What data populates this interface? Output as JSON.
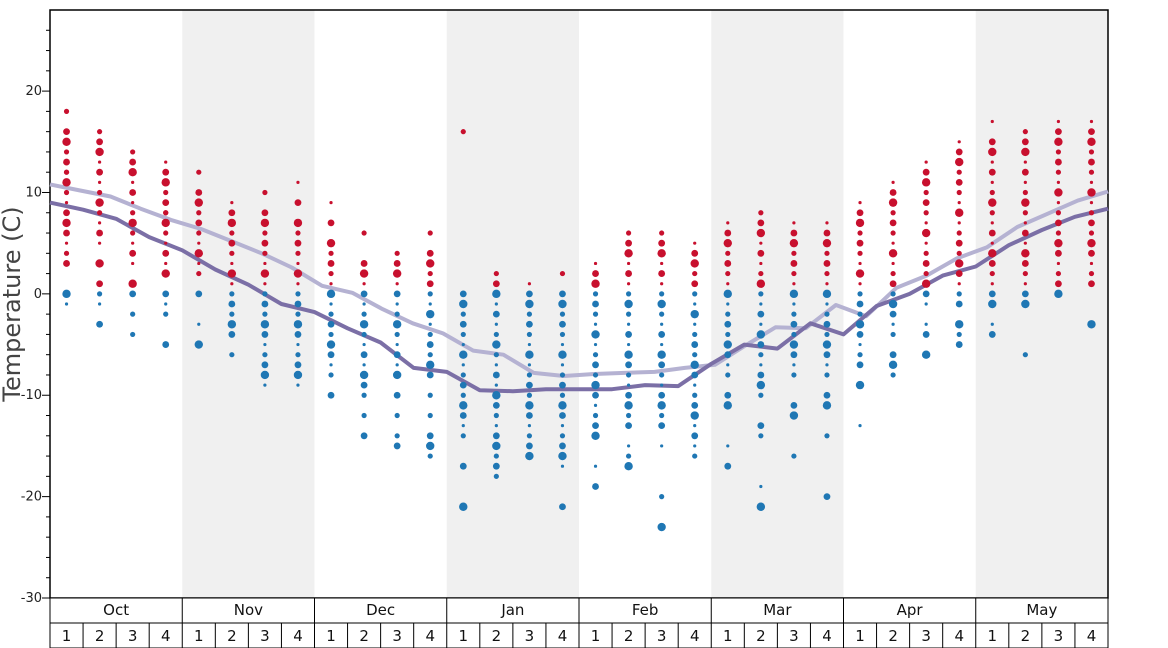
{
  "chart_data": {
    "type": "scatter",
    "title": "",
    "ylabel": "Temperature (C)",
    "ylim": [
      -30,
      28
    ],
    "yticks": [
      20,
      10,
      0,
      -10,
      -20,
      -30
    ],
    "months": [
      "Oct",
      "Nov",
      "Dec",
      "Jan",
      "Feb",
      "Mar",
      "Apr",
      "May"
    ],
    "weeks_per_month": [
      "1",
      "2",
      "3",
      "4"
    ],
    "shaded_months": [
      "Nov",
      "Jan",
      "Mar",
      "May"
    ],
    "colors": {
      "warm_points": "#c8102e",
      "cold_points": "#1f77b4",
      "max_line": "#b5b2d2",
      "min_line": "#7b6fa6",
      "shading": "#f0f0f0"
    },
    "series": [
      {
        "name": "",
        "type": "line",
        "color": "#b5b2d2",
        "values": [
          10.8,
          10.2,
          9.6,
          8.4,
          7.3,
          6.4,
          5.2,
          4.0,
          2.6,
          0.8,
          0.1,
          -1.5,
          -2.9,
          -3.9,
          -5.6,
          -6.0,
          -7.8,
          -8.1,
          -7.9,
          -7.8,
          -7.7,
          -7.3,
          -7.0,
          -5.1,
          -3.3,
          -3.4,
          -1.1,
          -2.2,
          0.6,
          1.8,
          3.5,
          4.6,
          6.6,
          7.9,
          9.2,
          10.1
        ]
      },
      {
        "name": "",
        "type": "line",
        "color": "#7b6fa6",
        "values": [
          9.0,
          8.3,
          7.4,
          5.6,
          4.3,
          2.4,
          0.9,
          -1.0,
          -1.8,
          -3.4,
          -4.8,
          -7.3,
          -7.7,
          -9.5,
          -9.6,
          -9.4,
          -9.4,
          -9.4,
          -9.0,
          -9.1,
          -6.9,
          -5.0,
          -5.4,
          -2.9,
          -4.0,
          -1.2,
          0.0,
          1.8,
          2.7,
          4.8,
          6.3,
          7.6,
          8.4
        ]
      },
      {
        "name": "",
        "type": "scatter",
        "values": [
          [
            18,
            16,
            15,
            14,
            13,
            12,
            12,
            11,
            10,
            9,
            8,
            8,
            7,
            6,
            5,
            4,
            3,
            0,
            -1
          ],
          [
            16,
            15,
            14,
            13,
            12,
            11,
            10,
            9,
            8,
            7,
            6,
            5,
            3,
            1,
            0,
            -1,
            -3
          ],
          [
            14,
            13,
            12,
            11,
            10,
            9,
            8,
            7,
            6,
            5,
            4,
            3,
            1,
            0,
            -2,
            -4
          ],
          [
            13,
            12,
            11,
            10,
            9,
            8,
            8,
            7,
            6,
            5,
            4,
            3,
            2,
            0,
            -1,
            -2,
            -5
          ],
          [
            12,
            10,
            9,
            8,
            7,
            6,
            5,
            4,
            3,
            2,
            0,
            -3,
            -5
          ],
          [
            9,
            8,
            7,
            6,
            5,
            4,
            3,
            2,
            1,
            0,
            -1,
            -2,
            -3,
            -4,
            -6
          ],
          [
            10,
            8,
            7,
            6,
            5,
            4,
            3,
            2,
            1,
            0,
            -1,
            -2,
            -3,
            -4,
            -5,
            -6,
            -7,
            -8,
            -9
          ],
          [
            11,
            9,
            7,
            6,
            5,
            4,
            3,
            2,
            1,
            0,
            -1,
            -2,
            -3,
            -4,
            -5,
            -6,
            -7,
            -8,
            -9
          ],
          [
            9,
            7,
            5,
            4,
            3,
            2,
            1,
            0,
            -1,
            -2,
            -3,
            -4,
            -5,
            -6,
            -7,
            -8,
            -10
          ],
          [
            6,
            3,
            2,
            1,
            0,
            -1,
            -2,
            -3,
            -4,
            -5,
            -6,
            -7,
            -8,
            -9,
            -10,
            -12,
            -14
          ],
          [
            4,
            3,
            2,
            1,
            0,
            -1,
            -2,
            -3,
            -4,
            -5,
            -6,
            -7,
            -8,
            -10,
            -12,
            -14,
            -15
          ],
          [
            6,
            4,
            3,
            2,
            1,
            0,
            -1,
            -2,
            -3,
            -4,
            -5,
            -6,
            -7,
            -8,
            -10,
            -12,
            -14,
            -15,
            -16
          ],
          [
            16,
            0,
            -1,
            -2,
            -3,
            -4,
            -5,
            -6,
            -7,
            -8,
            -9,
            -10,
            -11,
            -12,
            -13,
            -14,
            -17,
            -21
          ],
          [
            2,
            1,
            0,
            -1,
            -2,
            -3,
            -4,
            -5,
            -6,
            -7,
            -8,
            -9,
            -10,
            -11,
            -12,
            -13,
            -14,
            -15,
            -16,
            -17,
            -18
          ],
          [
            1,
            0,
            -1,
            -2,
            -3,
            -4,
            -5,
            -6,
            -7,
            -8,
            -9,
            -10,
            -11,
            -12,
            -13,
            -14,
            -15,
            -16
          ],
          [
            2,
            0,
            -1,
            -2,
            -3,
            -4,
            -5,
            -6,
            -7,
            -8,
            -9,
            -10,
            -11,
            -12,
            -13,
            -14,
            -15,
            -16,
            -17,
            -21
          ],
          [
            3,
            2,
            1,
            0,
            -1,
            -2,
            -3,
            -4,
            -5,
            -6,
            -7,
            -8,
            -9,
            -10,
            -11,
            -12,
            -13,
            -14,
            -17,
            -19
          ],
          [
            6,
            5,
            4,
            3,
            2,
            1,
            0,
            -1,
            -2,
            -3,
            -4,
            -5,
            -6,
            -7,
            -8,
            -9,
            -10,
            -11,
            -12,
            -13,
            -15,
            -16,
            -17
          ],
          [
            6,
            5,
            4,
            3,
            2,
            1,
            0,
            -1,
            -2,
            -3,
            -4,
            -5,
            -6,
            -7,
            -8,
            -9,
            -10,
            -11,
            -12,
            -13,
            -15,
            -20,
            -23
          ],
          [
            5,
            4,
            3,
            2,
            1,
            0,
            -1,
            -2,
            -3,
            -4,
            -5,
            -6,
            -7,
            -8,
            -9,
            -10,
            -11,
            -12,
            -13,
            -14,
            -15,
            -16
          ],
          [
            7,
            6,
            5,
            4,
            3,
            2,
            1,
            0,
            -1,
            -2,
            -3,
            -4,
            -5,
            -6,
            -7,
            -8,
            -10,
            -11,
            -15,
            -17
          ],
          [
            8,
            7,
            6,
            5,
            4,
            3,
            2,
            1,
            0,
            -1,
            -2,
            -3,
            -4,
            -5,
            -6,
            -7,
            -8,
            -9,
            -10,
            -13,
            -14,
            -19,
            -21
          ],
          [
            7,
            6,
            5,
            4,
            3,
            2,
            1,
            0,
            -1,
            -2,
            -3,
            -4,
            -5,
            -6,
            -7,
            -8,
            -11,
            -12,
            -16
          ],
          [
            7,
            6,
            5,
            4,
            3,
            2,
            1,
            0,
            -1,
            -2,
            -3,
            -4,
            -5,
            -6,
            -7,
            -8,
            -10,
            -11,
            -14,
            -20
          ],
          [
            9,
            8,
            7,
            6,
            5,
            4,
            3,
            2,
            1,
            0,
            -1,
            -2,
            -3,
            -4,
            -5,
            -6,
            -7,
            -9,
            -13
          ],
          [
            11,
            10,
            9,
            8,
            7,
            6,
            5,
            4,
            3,
            2,
            1,
            0,
            -1,
            -2,
            -3,
            -4,
            -6,
            -7,
            -8
          ],
          [
            13,
            12,
            11,
            10,
            9,
            8,
            7,
            6,
            5,
            4,
            3,
            2,
            1,
            0,
            -1,
            -3,
            -4,
            -6
          ],
          [
            15,
            14,
            13,
            12,
            11,
            10,
            9,
            8,
            7,
            6,
            5,
            4,
            3,
            2,
            1,
            0,
            -1,
            -3,
            -4,
            -5
          ],
          [
            17,
            15,
            14,
            13,
            12,
            11,
            10,
            9,
            8,
            7,
            6,
            5,
            4,
            3,
            2,
            1,
            0,
            -1,
            -3,
            -4
          ],
          [
            16,
            15,
            14,
            13,
            12,
            11,
            10,
            9,
            8,
            7,
            6,
            5,
            4,
            3,
            2,
            1,
            0,
            -1,
            -6
          ],
          [
            17,
            16,
            15,
            14,
            13,
            12,
            11,
            10,
            9,
            8,
            7,
            6,
            5,
            4,
            3,
            2,
            1,
            0
          ],
          [
            17,
            16,
            15,
            14,
            13,
            12,
            11,
            10,
            9,
            8,
            7,
            6,
            5,
            4,
            3,
            2,
            1,
            -3
          ]
        ]
      }
    ]
  }
}
